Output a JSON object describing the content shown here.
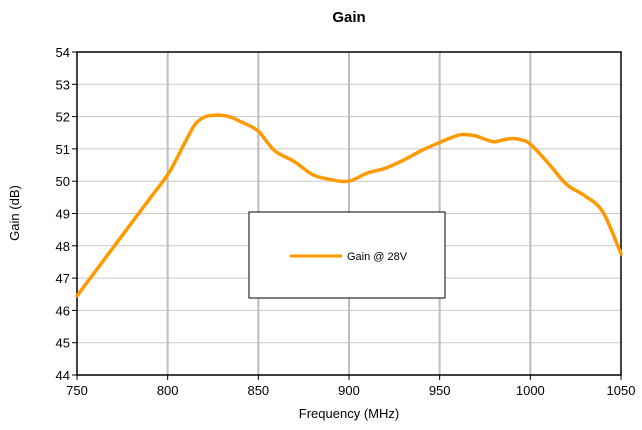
{
  "chart_data": {
    "type": "line",
    "title": "Gain",
    "xlabel": "Frequency (MHz)",
    "ylabel": "Gain (dB)",
    "xlim": [
      750,
      1050
    ],
    "ylim": [
      44,
      54
    ],
    "xticks": [
      750,
      800,
      850,
      900,
      950,
      1000,
      1050
    ],
    "yticks": [
      44,
      45,
      46,
      47,
      48,
      49,
      50,
      51,
      52,
      53,
      54
    ],
    "grid": "both",
    "legend_placement": "center",
    "series": [
      {
        "name": "Gain @ 28V",
        "color": "#FF9900",
        "x": [
          750,
          760,
          770,
          780,
          790,
          800,
          805,
          810,
          815,
          820,
          825,
          830,
          835,
          840,
          845,
          850,
          855,
          860,
          870,
          880,
          890,
          900,
          910,
          920,
          930,
          940,
          950,
          960,
          965,
          970,
          975,
          980,
          985,
          990,
          995,
          1000,
          1010,
          1020,
          1030,
          1040,
          1050
        ],
        "y": [
          46.45,
          47.2,
          47.95,
          48.7,
          49.45,
          50.2,
          50.7,
          51.25,
          51.75,
          51.98,
          52.04,
          52.04,
          51.98,
          51.85,
          51.72,
          51.55,
          51.2,
          50.9,
          50.6,
          50.2,
          50.05,
          50.0,
          50.25,
          50.4,
          50.65,
          50.95,
          51.2,
          51.42,
          51.44,
          51.4,
          51.3,
          51.22,
          51.28,
          51.32,
          51.28,
          51.15,
          50.55,
          49.9,
          49.55,
          49.05,
          47.75
        ]
      }
    ]
  }
}
